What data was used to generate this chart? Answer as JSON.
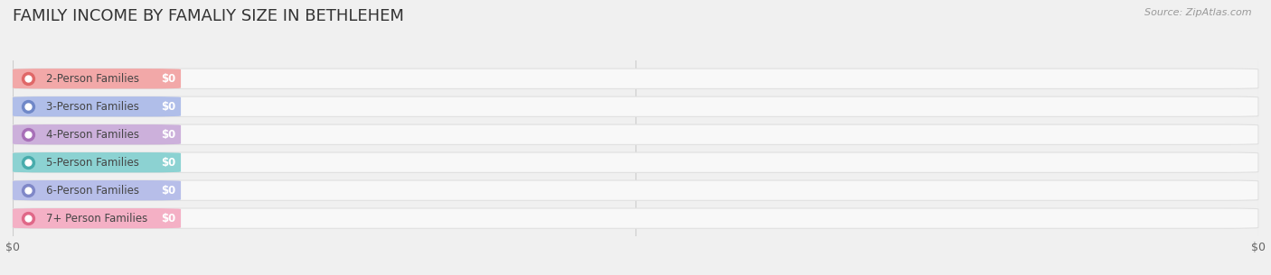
{
  "title": "FAMILY INCOME BY FAMALIY SIZE IN BETHLEHEM",
  "source": "Source: ZipAtlas.com",
  "categories": [
    "2-Person Families",
    "3-Person Families",
    "4-Person Families",
    "5-Person Families",
    "6-Person Families",
    "7+ Person Families"
  ],
  "values": [
    0,
    0,
    0,
    0,
    0,
    0
  ],
  "bar_colors": [
    "#f2a0a0",
    "#a8b8e8",
    "#c8a8d8",
    "#80cece",
    "#b0b8e8",
    "#f4a8c0"
  ],
  "dot_colors": [
    "#e06868",
    "#7088c8",
    "#a870b8",
    "#48acac",
    "#8088c8",
    "#e06888"
  ],
  "background_color": "#f0f0f0",
  "bar_bg_color": "#f8f8f8",
  "bar_bg_edge_color": "#e0e0e0",
  "title_fontsize": 13,
  "label_fontsize": 8.5,
  "value_fontsize": 8.5,
  "source_fontsize": 8,
  "bar_height": 0.72,
  "x_ticks": [
    0,
    1.0
  ],
  "x_tick_labels": [
    "$0",
    "$0"
  ]
}
